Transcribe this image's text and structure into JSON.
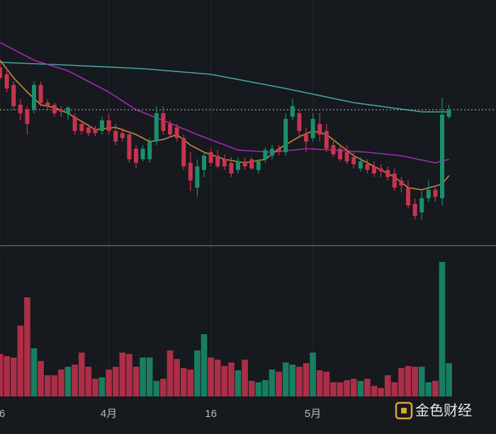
{
  "chart_data": {
    "type": "candlestick",
    "categories": [
      "6",
      null,
      null,
      null,
      null,
      null,
      null,
      null,
      null,
      null,
      null,
      null,
      null,
      null,
      null,
      null,
      "4月",
      null,
      null,
      null,
      null,
      null,
      null,
      null,
      null,
      null,
      null,
      null,
      null,
      null,
      null,
      "16",
      null,
      null,
      null,
      null,
      null,
      null,
      null,
      null,
      null,
      null,
      null,
      null,
      null,
      null,
      "5月",
      null,
      null,
      null,
      null,
      null,
      null,
      null,
      null,
      null,
      null,
      null,
      null,
      null,
      null,
      null,
      null,
      null,
      null,
      null,
      null
    ],
    "open": [
      250,
      240,
      225,
      197,
      190,
      190,
      225,
      200,
      197,
      190,
      185,
      180,
      170,
      165,
      163,
      160,
      175,
      160,
      157,
      155,
      135,
      120,
      120,
      145,
      185,
      170,
      165,
      150,
      115,
      80,
      105,
      130,
      125,
      120,
      115,
      105,
      117,
      120,
      105,
      120,
      125,
      135,
      130,
      180,
      185,
      155,
      150,
      170,
      160,
      140,
      135,
      130,
      123,
      107,
      113,
      110,
      107,
      105,
      100,
      90,
      80,
      57,
      45,
      65,
      77,
      65,
      180
    ],
    "high": [
      260,
      250,
      230,
      205,
      195,
      230,
      230,
      205,
      200,
      195,
      195,
      185,
      175,
      170,
      167,
      180,
      185,
      170,
      165,
      160,
      140,
      140,
      150,
      195,
      195,
      175,
      170,
      155,
      130,
      120,
      130,
      135,
      133,
      127,
      123,
      123,
      123,
      123,
      120,
      137,
      140,
      140,
      185,
      205,
      190,
      165,
      185,
      185,
      170,
      145,
      140,
      140,
      130,
      123,
      120,
      117,
      113,
      110,
      107,
      95,
      90,
      65,
      75,
      90,
      83,
      207,
      197
    ],
    "low": [
      233,
      215,
      190,
      175,
      155,
      185,
      195,
      190,
      180,
      180,
      175,
      155,
      155,
      153,
      153,
      155,
      155,
      140,
      145,
      115,
      107,
      117,
      115,
      140,
      155,
      150,
      145,
      105,
      75,
      67,
      95,
      110,
      107,
      105,
      95,
      100,
      105,
      105,
      100,
      115,
      120,
      125,
      125,
      175,
      150,
      130,
      145,
      145,
      130,
      123,
      117,
      113,
      107,
      103,
      100,
      95,
      95,
      90,
      75,
      73,
      50,
      35,
      35,
      60,
      60,
      55,
      177
    ],
    "close": [
      235,
      220,
      195,
      185,
      170,
      225,
      200,
      195,
      185,
      187,
      193,
      160,
      160,
      157,
      157,
      175,
      160,
      145,
      150,
      120,
      115,
      135,
      145,
      185,
      160,
      155,
      150,
      110,
      90,
      110,
      125,
      115,
      110,
      110,
      100,
      117,
      110,
      107,
      117,
      133,
      135,
      130,
      177,
      195,
      160,
      145,
      177,
      155,
      135,
      127,
      120,
      117,
      113,
      117,
      105,
      100,
      103,
      95,
      80,
      83,
      55,
      40,
      65,
      77,
      67,
      183,
      190
    ],
    "volume": [
      60,
      57,
      55,
      100,
      140,
      68,
      50,
      30,
      30,
      38,
      42,
      45,
      62,
      42,
      25,
      27,
      38,
      42,
      62,
      60,
      42,
      55,
      55,
      22,
      25,
      65,
      53,
      40,
      38,
      65,
      88,
      55,
      52,
      43,
      48,
      37,
      52,
      22,
      20,
      23,
      38,
      35,
      48,
      45,
      42,
      47,
      62,
      37,
      35,
      20,
      20,
      23,
      25,
      22,
      25,
      15,
      12,
      30,
      20,
      40,
      43,
      42,
      42,
      20,
      22,
      190,
      47
    ],
    "up_color": "#1a8f6e",
    "down_color": "#c7344f",
    "ylim": [
      0,
      345
    ],
    "volume_ylim": [
      0,
      213
    ],
    "lines": [
      {
        "color": "#3fa9a0",
        "x": [
          0,
          10,
          21,
          31,
          42,
          52,
          62,
          66
        ],
        "values": [
          257,
          253,
          248,
          240,
          220,
          200,
          187,
          187
        ]
      },
      {
        "color": "#a42ab8",
        "x": [
          0,
          5,
          10,
          16,
          20,
          24,
          29,
          35,
          40,
          45,
          49,
          54,
          59,
          64,
          66
        ],
        "values": [
          285,
          260,
          245,
          215,
          190,
          175,
          155,
          133,
          130,
          135,
          133,
          130,
          125,
          115,
          120
        ]
      },
      {
        "color": "#c98a3a",
        "x": [
          0,
          2,
          4,
          6,
          8,
          10,
          14,
          17,
          20,
          22,
          24,
          26,
          28,
          30,
          33,
          36,
          39,
          41,
          44,
          46,
          48,
          50,
          52,
          55,
          58,
          60,
          62,
          65,
          66
        ],
        "values": [
          260,
          235,
          215,
          197,
          193,
          185,
          162,
          165,
          155,
          145,
          148,
          155,
          140,
          130,
          120,
          115,
          120,
          135,
          152,
          160,
          155,
          140,
          125,
          110,
          95,
          80,
          77,
          85,
          97
        ]
      }
    ],
    "watermark": "金色财经"
  }
}
